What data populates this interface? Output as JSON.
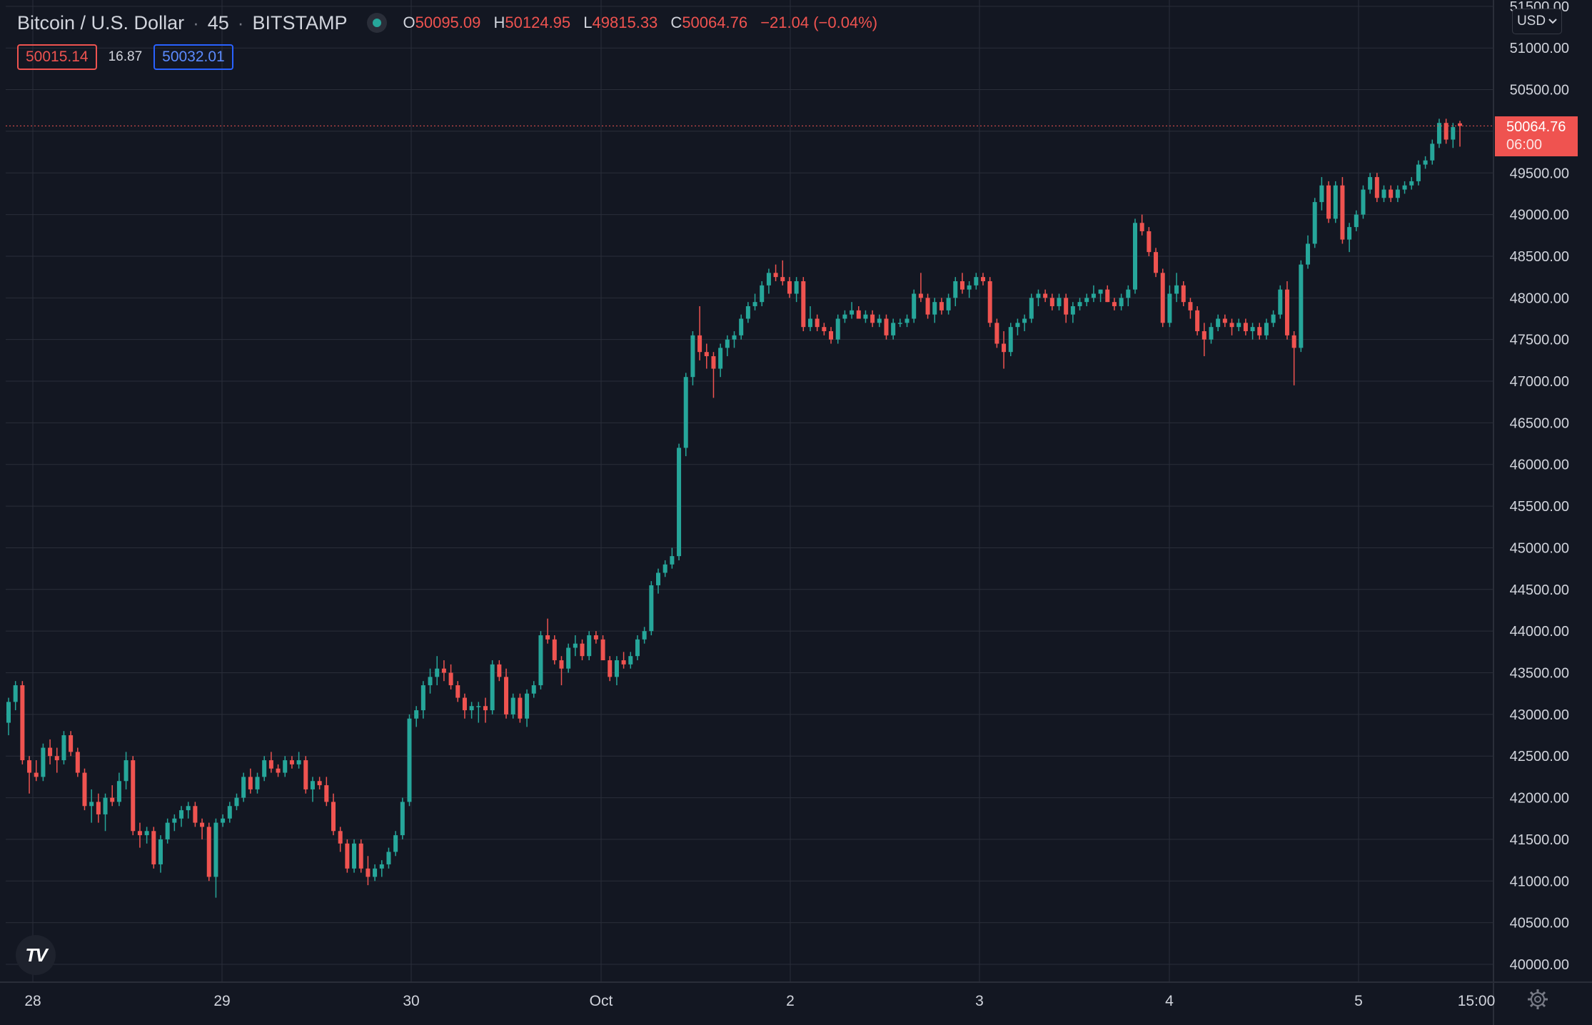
{
  "header": {
    "symbol": "Bitcoin / U.S. Dollar",
    "interval": "45",
    "exchange": "BITSTAMP",
    "ohlc": {
      "o_label": "O",
      "o": "50095.09",
      "h_label": "H",
      "h": "50124.95",
      "l_label": "L",
      "l": "49815.33",
      "c_label": "C",
      "c": "50064.76",
      "change": "−21.04 (−0.04%)"
    },
    "bid": "50015.14",
    "spread": "16.87",
    "ask": "50032.01"
  },
  "currency_button": "USD",
  "last_price_label": {
    "price": "50064.76",
    "countdown": "06:00"
  },
  "colors": {
    "up": "#26a69a",
    "down": "#ef5350",
    "background": "#131722",
    "grid": "#2a2e39",
    "text": "#d1d4dc"
  },
  "chart_data": {
    "type": "candlestick",
    "ylim": [
      39750,
      51500
    ],
    "y_ticks": [
      40000,
      40500,
      41000,
      41500,
      42000,
      42500,
      43000,
      43500,
      44000,
      44500,
      45000,
      45500,
      46000,
      46500,
      47000,
      47500,
      48000,
      48500,
      49000,
      49500,
      50000,
      50500,
      51000,
      51500
    ],
    "y_tick_labels": [
      "40000.00",
      "40500.00",
      "41000.00",
      "41500.00",
      "42000.00",
      "42500.00",
      "43000.00",
      "43500.00",
      "44000.00",
      "44500.00",
      "45000.00",
      "45500.00",
      "46000.00",
      "46500.00",
      "47000.00",
      "47500.00",
      "48000.00",
      "48500.00",
      "49000.00",
      "49500.00",
      "50000.00",
      "50500.00",
      "51000.00",
      "51500.00"
    ],
    "x_tick_labels": [
      "28",
      "29",
      "30",
      "Oct",
      "2",
      "3",
      "4",
      "5",
      "15:00"
    ],
    "last_price": 50064.76,
    "grid": true,
    "candles": [
      [
        42900,
        43200,
        42750,
        43150
      ],
      [
        43150,
        43400,
        43050,
        43350
      ],
      [
        43350,
        43400,
        42400,
        42450
      ],
      [
        42450,
        42500,
        42050,
        42300
      ],
      [
        42300,
        42450,
        42200,
        42250
      ],
      [
        42250,
        42650,
        42200,
        42600
      ],
      [
        42600,
        42700,
        42400,
        42500
      ],
      [
        42500,
        42600,
        42300,
        42450
      ],
      [
        42450,
        42800,
        42400,
        42750
      ],
      [
        42750,
        42800,
        42500,
        42550
      ],
      [
        42550,
        42600,
        42250,
        42300
      ],
      [
        42300,
        42350,
        41850,
        41900
      ],
      [
        41900,
        42100,
        41700,
        41950
      ],
      [
        41950,
        42050,
        41700,
        41800
      ],
      [
        41800,
        42050,
        41600,
        42000
      ],
      [
        42000,
        42150,
        41900,
        41950
      ],
      [
        41950,
        42300,
        41900,
        42200
      ],
      [
        42200,
        42550,
        42100,
        42450
      ],
      [
        42450,
        42500,
        41550,
        41600
      ],
      [
        41600,
        41700,
        41400,
        41550
      ],
      [
        41550,
        41650,
        41450,
        41600
      ],
      [
        41600,
        41650,
        41150,
        41200
      ],
      [
        41200,
        41550,
        41100,
        41500
      ],
      [
        41500,
        41750,
        41450,
        41700
      ],
      [
        41700,
        41800,
        41600,
        41750
      ],
      [
        41750,
        41900,
        41650,
        41850
      ],
      [
        41850,
        41950,
        41750,
        41900
      ],
      [
        41900,
        41950,
        41650,
        41700
      ],
      [
        41700,
        41750,
        41500,
        41650
      ],
      [
        41650,
        41700,
        41000,
        41050
      ],
      [
        41050,
        41750,
        40800,
        41700
      ],
      [
        41700,
        41800,
        41650,
        41750
      ],
      [
        41750,
        41950,
        41700,
        41900
      ],
      [
        41900,
        42050,
        41850,
        42000
      ],
      [
        42000,
        42300,
        41950,
        42250
      ],
      [
        42250,
        42350,
        42050,
        42100
      ],
      [
        42100,
        42300,
        42050,
        42250
      ],
      [
        42250,
        42500,
        42200,
        42450
      ],
      [
        42450,
        42550,
        42300,
        42350
      ],
      [
        42350,
        42400,
        42250,
        42300
      ],
      [
        42300,
        42500,
        42250,
        42450
      ],
      [
        42450,
        42500,
        42350,
        42400
      ],
      [
        42400,
        42550,
        42350,
        42450
      ],
      [
        42450,
        42500,
        42050,
        42100
      ],
      [
        42100,
        42250,
        41950,
        42200
      ],
      [
        42200,
        42250,
        42100,
        42150
      ],
      [
        42150,
        42250,
        41900,
        41950
      ],
      [
        41950,
        42050,
        41550,
        41600
      ],
      [
        41600,
        41650,
        41350,
        41450
      ],
      [
        41450,
        41500,
        41100,
        41150
      ],
      [
        41150,
        41500,
        41100,
        41450
      ],
      [
        41450,
        41500,
        41100,
        41150
      ],
      [
        41150,
        41300,
        40950,
        41050
      ],
      [
        41050,
        41200,
        41000,
        41150
      ],
      [
        41150,
        41250,
        41050,
        41200
      ],
      [
        41200,
        41400,
        41150,
        41350
      ],
      [
        41350,
        41600,
        41300,
        41550
      ],
      [
        41550,
        42000,
        41500,
        41950
      ],
      [
        41950,
        43000,
        41900,
        42950
      ],
      [
        42950,
        43100,
        42850,
        43050
      ],
      [
        43050,
        43400,
        42950,
        43350
      ],
      [
        43350,
        43550,
        43250,
        43450
      ],
      [
        43450,
        43700,
        43350,
        43550
      ],
      [
        43550,
        43650,
        43400,
        43500
      ],
      [
        43500,
        43600,
        43300,
        43350
      ],
      [
        43350,
        43400,
        43150,
        43200
      ],
      [
        43200,
        43250,
        42950,
        43050
      ],
      [
        43050,
        43150,
        42950,
        43100
      ],
      [
        43100,
        43150,
        42900,
        43100
      ],
      [
        43100,
        43200,
        42900,
        43050
      ],
      [
        43050,
        43650,
        43000,
        43600
      ],
      [
        43600,
        43650,
        43400,
        43450
      ],
      [
        43450,
        43550,
        42950,
        43000
      ],
      [
        43000,
        43250,
        42950,
        43200
      ],
      [
        43200,
        43250,
        42900,
        42950
      ],
      [
        42950,
        43300,
        42850,
        43250
      ],
      [
        43250,
        43400,
        43200,
        43350
      ],
      [
        43350,
        44000,
        43300,
        43950
      ],
      [
        43950,
        44150,
        43850,
        43900
      ],
      [
        43900,
        43950,
        43600,
        43650
      ],
      [
        43650,
        43700,
        43350,
        43550
      ],
      [
        43550,
        43850,
        43500,
        43800
      ],
      [
        43800,
        43950,
        43700,
        43850
      ],
      [
        43850,
        43900,
        43650,
        43700
      ],
      [
        43700,
        44000,
        43650,
        43950
      ],
      [
        43950,
        44000,
        43850,
        43900
      ],
      [
        43900,
        43950,
        43650,
        43650
      ],
      [
        43650,
        43700,
        43400,
        43450
      ],
      [
        43450,
        43700,
        43350,
        43650
      ],
      [
        43650,
        43750,
        43550,
        43600
      ],
      [
        43600,
        43750,
        43550,
        43700
      ],
      [
        43700,
        43950,
        43650,
        43900
      ],
      [
        43900,
        44050,
        43850,
        44000
      ],
      [
        44000,
        44600,
        43950,
        44550
      ],
      [
        44550,
        44750,
        44450,
        44700
      ],
      [
        44700,
        44850,
        44650,
        44800
      ],
      [
        44800,
        45000,
        44750,
        44900
      ],
      [
        44900,
        46250,
        44850,
        46200
      ],
      [
        46200,
        47100,
        46100,
        47050
      ],
      [
        47050,
        47600,
        46950,
        47550
      ],
      [
        47550,
        47900,
        47250,
        47350
      ],
      [
        47350,
        47450,
        47150,
        47300
      ],
      [
        47300,
        47350,
        46800,
        47150
      ],
      [
        47150,
        47450,
        47050,
        47400
      ],
      [
        47400,
        47550,
        47300,
        47500
      ],
      [
        47500,
        47600,
        47400,
        47550
      ],
      [
        47550,
        47800,
        47500,
        47750
      ],
      [
        47750,
        47950,
        47700,
        47900
      ],
      [
        47900,
        48050,
        47850,
        47950
      ],
      [
        47950,
        48200,
        47900,
        48150
      ],
      [
        48150,
        48350,
        48050,
        48300
      ],
      [
        48300,
        48400,
        48200,
        48250
      ],
      [
        48250,
        48450,
        48150,
        48200
      ],
      [
        48200,
        48250,
        48000,
        48050
      ],
      [
        48050,
        48250,
        47950,
        48200
      ],
      [
        48200,
        48250,
        47600,
        47650
      ],
      [
        47650,
        47900,
        47600,
        47750
      ],
      [
        47750,
        47800,
        47600,
        47650
      ],
      [
        47650,
        47700,
        47550,
        47600
      ],
      [
        47600,
        47650,
        47450,
        47500
      ],
      [
        47500,
        47800,
        47450,
        47750
      ],
      [
        47750,
        47850,
        47700,
        47800
      ],
      [
        47800,
        47950,
        47750,
        47850
      ],
      [
        47850,
        47900,
        47750,
        47750
      ],
      [
        47750,
        47850,
        47700,
        47800
      ],
      [
        47800,
        47850,
        47650,
        47700
      ],
      [
        47700,
        47800,
        47650,
        47750
      ],
      [
        47750,
        47800,
        47500,
        47550
      ],
      [
        47550,
        47750,
        47500,
        47700
      ],
      [
        47700,
        47750,
        47650,
        47700
      ],
      [
        47700,
        47800,
        47650,
        47750
      ],
      [
        47750,
        48100,
        47700,
        48050
      ],
      [
        48050,
        48300,
        47950,
        48000
      ],
      [
        48000,
        48050,
        47750,
        47800
      ],
      [
        47800,
        48000,
        47700,
        47950
      ],
      [
        47950,
        48000,
        47800,
        47850
      ],
      [
        47850,
        48050,
        47800,
        48000
      ],
      [
        48000,
        48250,
        47900,
        48200
      ],
      [
        48200,
        48300,
        48050,
        48100
      ],
      [
        48100,
        48200,
        48000,
        48150
      ],
      [
        48150,
        48300,
        48100,
        48250
      ],
      [
        48250,
        48300,
        48150,
        48200
      ],
      [
        48200,
        48250,
        47650,
        47700
      ],
      [
        47700,
        47750,
        47400,
        47450
      ],
      [
        47450,
        47600,
        47150,
        47350
      ],
      [
        47350,
        47700,
        47300,
        47650
      ],
      [
        47650,
        47750,
        47550,
        47700
      ],
      [
        47700,
        47800,
        47600,
        47750
      ],
      [
        47750,
        48050,
        47700,
        48000
      ],
      [
        48000,
        48100,
        47900,
        48050
      ],
      [
        48050,
        48100,
        47950,
        48000
      ],
      [
        48000,
        48050,
        47850,
        47900
      ],
      [
        47900,
        48050,
        47850,
        48000
      ],
      [
        48000,
        48050,
        47700,
        47800
      ],
      [
        47800,
        47950,
        47700,
        47900
      ],
      [
        47900,
        48000,
        47850,
        47950
      ],
      [
        47950,
        48050,
        47900,
        48000
      ],
      [
        48000,
        48150,
        47950,
        48050
      ],
      [
        48050,
        48100,
        47950,
        48100
      ],
      [
        48100,
        48150,
        47950,
        47950
      ],
      [
        47950,
        48000,
        47850,
        47900
      ],
      [
        47900,
        48050,
        47850,
        48000
      ],
      [
        48000,
        48150,
        47900,
        48100
      ],
      [
        48100,
        48950,
        48050,
        48900
      ],
      [
        48900,
        49000,
        48750,
        48800
      ],
      [
        48800,
        48850,
        48500,
        48550
      ],
      [
        48550,
        48600,
        48250,
        48300
      ],
      [
        48300,
        48350,
        47650,
        47700
      ],
      [
        47700,
        48150,
        47650,
        48050
      ],
      [
        48050,
        48300,
        47950,
        48150
      ],
      [
        48150,
        48200,
        47900,
        47950
      ],
      [
        47950,
        48000,
        47750,
        47850
      ],
      [
        47850,
        47900,
        47550,
        47600
      ],
      [
        47600,
        47700,
        47300,
        47500
      ],
      [
        47500,
        47700,
        47450,
        47650
      ],
      [
        47650,
        47800,
        47600,
        47750
      ],
      [
        47750,
        47800,
        47650,
        47700
      ],
      [
        47700,
        47750,
        47550,
        47650
      ],
      [
        47650,
        47750,
        47600,
        47700
      ],
      [
        47700,
        47750,
        47550,
        47600
      ],
      [
        47600,
        47700,
        47500,
        47650
      ],
      [
        47650,
        47700,
        47500,
        47550
      ],
      [
        47550,
        47750,
        47500,
        47700
      ],
      [
        47700,
        47850,
        47650,
        47800
      ],
      [
        47800,
        48150,
        47750,
        48100
      ],
      [
        48100,
        48200,
        47500,
        47550
      ],
      [
        47550,
        47600,
        46950,
        47400
      ],
      [
        47400,
        48450,
        47350,
        48400
      ],
      [
        48400,
        48750,
        48350,
        48650
      ],
      [
        48650,
        49200,
        48600,
        49150
      ],
      [
        49150,
        49450,
        49050,
        49350
      ],
      [
        49350,
        49400,
        48900,
        48950
      ],
      [
        48950,
        49400,
        48900,
        49350
      ],
      [
        49350,
        49450,
        48650,
        48700
      ],
      [
        48700,
        48900,
        48550,
        48850
      ],
      [
        48850,
        49050,
        48800,
        49000
      ],
      [
        49000,
        49350,
        48950,
        49300
      ],
      [
        49300,
        49500,
        49250,
        49450
      ],
      [
        49450,
        49500,
        49150,
        49200
      ],
      [
        49200,
        49350,
        49150,
        49300
      ],
      [
        49300,
        49350,
        49150,
        49200
      ],
      [
        49200,
        49350,
        49150,
        49300
      ],
      [
        49300,
        49400,
        49250,
        49350
      ],
      [
        49350,
        49450,
        49300,
        49400
      ],
      [
        49400,
        49650,
        49350,
        49600
      ],
      [
        49600,
        49700,
        49550,
        49650
      ],
      [
        49650,
        49900,
        49600,
        49850
      ],
      [
        49850,
        50150,
        49800,
        50100
      ],
      [
        50100,
        50150,
        49850,
        49900
      ],
      [
        49900,
        50100,
        49800,
        50050
      ],
      [
        50095.09,
        50124.95,
        49815.33,
        50064.76
      ]
    ]
  }
}
